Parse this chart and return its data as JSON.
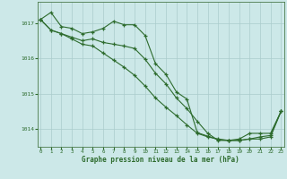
{
  "title": "",
  "xlabel": "Graphe pression niveau de la mer (hPa)",
  "ylabel": "",
  "background_color": "#cce8e8",
  "grid_color": "#aacccc",
  "line_color": "#2d6b2d",
  "x_ticks": [
    0,
    1,
    2,
    3,
    4,
    5,
    6,
    7,
    8,
    9,
    10,
    11,
    12,
    13,
    14,
    15,
    16,
    17,
    18,
    19,
    20,
    21,
    22,
    23
  ],
  "y_ticks": [
    1014,
    1015,
    1016,
    1017
  ],
  "ylim": [
    1013.5,
    1017.6
  ],
  "xlim": [
    -0.3,
    23.3
  ],
  "line1": [
    1017.1,
    1017.3,
    1016.9,
    1016.85,
    1016.7,
    1016.75,
    1016.85,
    1017.05,
    1016.95,
    1016.95,
    1016.65,
    1015.85,
    1015.55,
    1015.05,
    1014.85,
    1013.9,
    1013.8,
    1013.7,
    1013.68,
    1013.72,
    1013.88,
    1013.88,
    1013.88,
    1014.5
  ],
  "line2": [
    1017.1,
    1016.8,
    1016.7,
    1016.6,
    1016.5,
    1016.55,
    1016.45,
    1016.4,
    1016.35,
    1016.28,
    1015.98,
    1015.58,
    1015.28,
    1014.88,
    1014.58,
    1014.22,
    1013.88,
    1013.68,
    1013.68,
    1013.68,
    1013.72,
    1013.72,
    1013.78,
    1014.5
  ],
  "line3": [
    1017.1,
    1016.8,
    1016.7,
    1016.55,
    1016.4,
    1016.35,
    1016.15,
    1015.95,
    1015.75,
    1015.52,
    1015.22,
    1014.88,
    1014.62,
    1014.38,
    1014.12,
    1013.88,
    1013.78,
    1013.72,
    1013.68,
    1013.68,
    1013.72,
    1013.78,
    1013.82,
    1014.5
  ]
}
